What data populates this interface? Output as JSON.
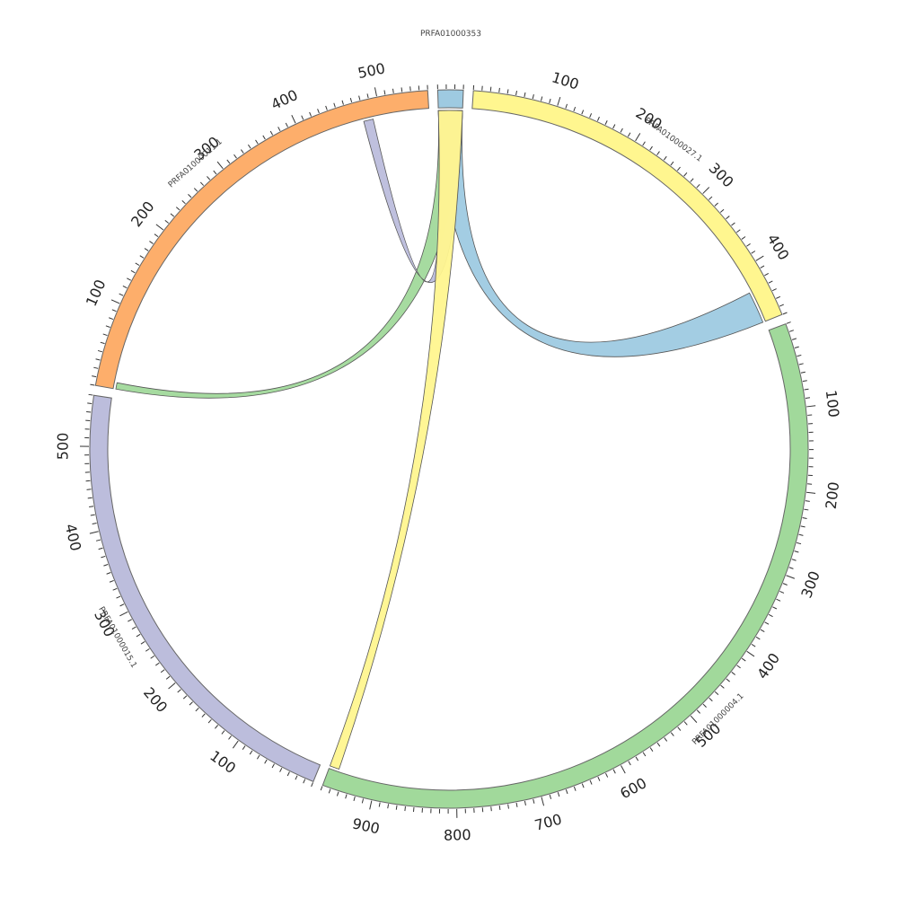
{
  "chart_data": {
    "type": "chord",
    "title": "",
    "segments": [
      {
        "name": "PRFA01000353",
        "length": 30,
        "color": "#9ecae1",
        "ticks": []
      },
      {
        "name": "PRFA01000027.1",
        "length": 470,
        "color": "#fff68f",
        "ticks": [
          "100",
          "200",
          "300",
          "400"
        ]
      },
      {
        "name": "PRFA01000004.1",
        "length": 960,
        "color": "#a1d99b",
        "ticks": [
          "100",
          "200",
          "300",
          "400",
          "500",
          "600",
          "700",
          "800",
          "900"
        ]
      },
      {
        "name": "PRFA01000015.1",
        "length": 560,
        "color": "#bcbddc",
        "ticks": [
          "100",
          "200",
          "300",
          "400",
          "500"
        ]
      },
      {
        "name": "PRFA01000011.1",
        "length": 560,
        "color": "#fdae6b",
        "ticks": [
          "100",
          "200",
          "300",
          "400",
          "500"
        ]
      }
    ],
    "links": [
      {
        "source": "PRFA01000353",
        "source_range": [
          0,
          30
        ],
        "target": "PRFA01000027.1",
        "target_range": [
          430,
          470
        ],
        "color": "#9ecae1"
      },
      {
        "source": "PRFA01000353",
        "source_range": [
          0,
          30
        ],
        "target": "PRFA01000011.1",
        "target_range": [
          0,
          8
        ],
        "color": "#a1d99b"
      },
      {
        "source": "PRFA01000353",
        "source_range": [
          0,
          30
        ],
        "target": "PRFA01000011.1",
        "target_range": [
          478,
          490
        ],
        "color": "#bcbddc"
      },
      {
        "source": "PRFA01000353",
        "source_range": [
          0,
          30
        ],
        "target": "PRFA01000004.1",
        "target_range": [
          948,
          960
        ],
        "color": "#fff68f"
      }
    ]
  }
}
